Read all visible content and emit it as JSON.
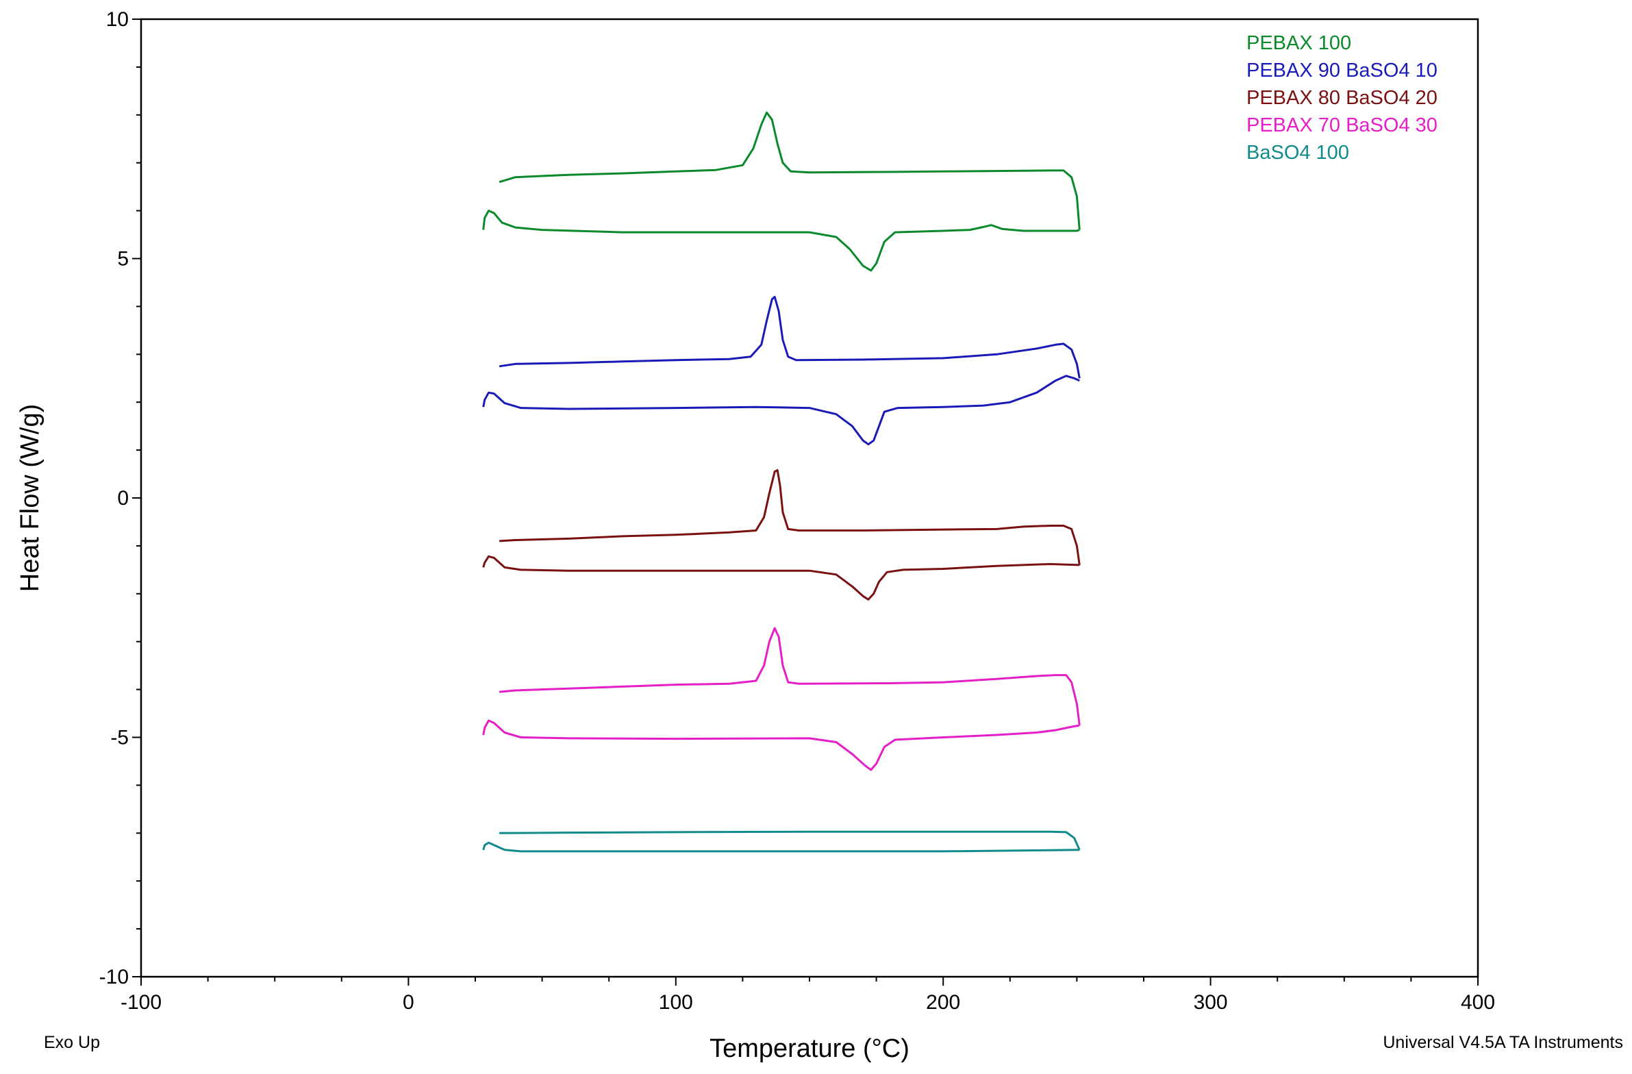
{
  "chart_data": {
    "type": "line",
    "xlabel": "Temperature (°C)",
    "ylabel": "Heat Flow (W/g)",
    "xlim": [
      -100,
      400
    ],
    "ylim": [
      -10,
      10
    ],
    "xticks": [
      -100,
      0,
      100,
      200,
      300,
      400
    ],
    "yticks": [
      -10,
      0,
      5,
      10
    ],
    "xtick_labels": [
      "-100",
      "0",
      "100",
      "200",
      "300",
      "400"
    ],
    "ytick_labels": [
      "-10",
      "0",
      "5",
      "10"
    ],
    "footer_left": "Exo Up",
    "footer_right": "Universal V4.5A TA Instruments",
    "grid": false,
    "legend_position": "top-right",
    "series": [
      {
        "name": "PEBAX 100",
        "color": "#0a8a2a",
        "cooling": [
          [
            34,
            6.6
          ],
          [
            40,
            6.7
          ],
          [
            60,
            6.75
          ],
          [
            80,
            6.78
          ],
          [
            100,
            6.82
          ],
          [
            115,
            6.85
          ],
          [
            125,
            6.95
          ],
          [
            129,
            7.3
          ],
          [
            132,
            7.8
          ],
          [
            134,
            8.05
          ],
          [
            136,
            7.9
          ],
          [
            138,
            7.4
          ],
          [
            140,
            7.0
          ],
          [
            143,
            6.82
          ],
          [
            150,
            6.8
          ],
          [
            180,
            6.81
          ],
          [
            200,
            6.82
          ],
          [
            220,
            6.83
          ],
          [
            240,
            6.84
          ],
          [
            245,
            6.84
          ],
          [
            248,
            6.7
          ],
          [
            250,
            6.3
          ],
          [
            251,
            5.6
          ]
        ],
        "heating": [
          [
            28,
            5.6
          ],
          [
            28.5,
            5.85
          ],
          [
            30,
            6.0
          ],
          [
            32,
            5.95
          ],
          [
            35,
            5.75
          ],
          [
            40,
            5.65
          ],
          [
            50,
            5.6
          ],
          [
            80,
            5.55
          ],
          [
            100,
            5.55
          ],
          [
            150,
            5.55
          ],
          [
            160,
            5.45
          ],
          [
            165,
            5.2
          ],
          [
            170,
            4.85
          ],
          [
            173,
            4.75
          ],
          [
            175,
            4.9
          ],
          [
            178,
            5.35
          ],
          [
            182,
            5.55
          ],
          [
            200,
            5.58
          ],
          [
            210,
            5.6
          ],
          [
            215,
            5.66
          ],
          [
            218,
            5.7
          ],
          [
            222,
            5.62
          ],
          [
            230,
            5.58
          ],
          [
            250,
            5.58
          ],
          [
            251,
            5.6
          ]
        ]
      },
      {
        "name": "PEBAX 90 BaSO4 10",
        "color": "#1a1ab8",
        "cooling": [
          [
            34,
            2.75
          ],
          [
            40,
            2.8
          ],
          [
            60,
            2.82
          ],
          [
            80,
            2.85
          ],
          [
            100,
            2.88
          ],
          [
            120,
            2.9
          ],
          [
            128,
            2.95
          ],
          [
            132,
            3.2
          ],
          [
            134,
            3.7
          ],
          [
            136,
            4.15
          ],
          [
            137,
            4.2
          ],
          [
            138.5,
            3.9
          ],
          [
            140,
            3.3
          ],
          [
            142,
            2.95
          ],
          [
            145,
            2.88
          ],
          [
            170,
            2.89
          ],
          [
            200,
            2.92
          ],
          [
            220,
            3.0
          ],
          [
            235,
            3.12
          ],
          [
            242,
            3.2
          ],
          [
            245,
            3.22
          ],
          [
            248,
            3.1
          ],
          [
            250,
            2.8
          ],
          [
            251,
            2.5
          ]
        ],
        "heating": [
          [
            28,
            1.9
          ],
          [
            28.5,
            2.05
          ],
          [
            30,
            2.2
          ],
          [
            32,
            2.18
          ],
          [
            36,
            1.98
          ],
          [
            42,
            1.88
          ],
          [
            60,
            1.86
          ],
          [
            100,
            1.88
          ],
          [
            130,
            1.9
          ],
          [
            150,
            1.88
          ],
          [
            160,
            1.75
          ],
          [
            166,
            1.5
          ],
          [
            170,
            1.2
          ],
          [
            172,
            1.12
          ],
          [
            174,
            1.2
          ],
          [
            176,
            1.5
          ],
          [
            178,
            1.8
          ],
          [
            183,
            1.88
          ],
          [
            200,
            1.9
          ],
          [
            215,
            1.93
          ],
          [
            225,
            2.0
          ],
          [
            235,
            2.2
          ],
          [
            242,
            2.45
          ],
          [
            246,
            2.55
          ],
          [
            249,
            2.5
          ],
          [
            251,
            2.45
          ]
        ]
      },
      {
        "name": "PEBAX 80 BaSO4 20",
        "color": "#7a1010",
        "cooling": [
          [
            34,
            -0.9
          ],
          [
            40,
            -0.88
          ],
          [
            60,
            -0.85
          ],
          [
            80,
            -0.8
          ],
          [
            100,
            -0.77
          ],
          [
            120,
            -0.72
          ],
          [
            130,
            -0.68
          ],
          [
            133,
            -0.4
          ],
          [
            135,
            0.1
          ],
          [
            137,
            0.55
          ],
          [
            138,
            0.58
          ],
          [
            139,
            0.25
          ],
          [
            140,
            -0.3
          ],
          [
            142,
            -0.65
          ],
          [
            146,
            -0.68
          ],
          [
            170,
            -0.68
          ],
          [
            200,
            -0.66
          ],
          [
            220,
            -0.65
          ],
          [
            230,
            -0.6
          ],
          [
            240,
            -0.58
          ],
          [
            245,
            -0.58
          ],
          [
            248,
            -0.65
          ],
          [
            250,
            -1.0
          ],
          [
            251,
            -1.4
          ]
        ],
        "heating": [
          [
            28,
            -1.45
          ],
          [
            28.5,
            -1.35
          ],
          [
            30,
            -1.22
          ],
          [
            32,
            -1.25
          ],
          [
            36,
            -1.45
          ],
          [
            42,
            -1.5
          ],
          [
            60,
            -1.52
          ],
          [
            100,
            -1.52
          ],
          [
            150,
            -1.52
          ],
          [
            160,
            -1.6
          ],
          [
            166,
            -1.85
          ],
          [
            170,
            -2.05
          ],
          [
            172,
            -2.12
          ],
          [
            174,
            -2.0
          ],
          [
            176,
            -1.75
          ],
          [
            179,
            -1.55
          ],
          [
            185,
            -1.5
          ],
          [
            200,
            -1.48
          ],
          [
            220,
            -1.42
          ],
          [
            240,
            -1.38
          ],
          [
            251,
            -1.4
          ]
        ]
      },
      {
        "name": "PEBAX 70 BaSO4 30",
        "color": "#e61ec8",
        "cooling": [
          [
            34,
            -4.05
          ],
          [
            40,
            -4.02
          ],
          [
            60,
            -3.98
          ],
          [
            80,
            -3.94
          ],
          [
            100,
            -3.9
          ],
          [
            120,
            -3.88
          ],
          [
            130,
            -3.82
          ],
          [
            133,
            -3.5
          ],
          [
            135,
            -3.0
          ],
          [
            137,
            -2.72
          ],
          [
            138.5,
            -2.9
          ],
          [
            140,
            -3.5
          ],
          [
            142,
            -3.85
          ],
          [
            146,
            -3.88
          ],
          [
            180,
            -3.87
          ],
          [
            200,
            -3.85
          ],
          [
            220,
            -3.78
          ],
          [
            235,
            -3.72
          ],
          [
            242,
            -3.7
          ],
          [
            246,
            -3.7
          ],
          [
            248,
            -3.85
          ],
          [
            250,
            -4.3
          ],
          [
            251,
            -4.75
          ]
        ],
        "heating": [
          [
            28,
            -4.95
          ],
          [
            28.5,
            -4.8
          ],
          [
            30,
            -4.65
          ],
          [
            32,
            -4.7
          ],
          [
            36,
            -4.9
          ],
          [
            42,
            -5.0
          ],
          [
            60,
            -5.02
          ],
          [
            100,
            -5.03
          ],
          [
            150,
            -5.02
          ],
          [
            160,
            -5.1
          ],
          [
            166,
            -5.35
          ],
          [
            171,
            -5.6
          ],
          [
            173,
            -5.68
          ],
          [
            175,
            -5.55
          ],
          [
            178,
            -5.2
          ],
          [
            182,
            -5.05
          ],
          [
            200,
            -5.0
          ],
          [
            220,
            -4.95
          ],
          [
            235,
            -4.9
          ],
          [
            242,
            -4.85
          ],
          [
            248,
            -4.78
          ],
          [
            251,
            -4.75
          ]
        ]
      },
      {
        "name": "BaSO4 100",
        "color": "#108a8a",
        "cooling": [
          [
            34,
            -7.0
          ],
          [
            60,
            -6.99
          ],
          [
            100,
            -6.98
          ],
          [
            150,
            -6.97
          ],
          [
            200,
            -6.97
          ],
          [
            240,
            -6.97
          ],
          [
            246,
            -6.98
          ],
          [
            249,
            -7.1
          ],
          [
            251,
            -7.35
          ]
        ],
        "heating": [
          [
            28,
            -7.35
          ],
          [
            28.5,
            -7.25
          ],
          [
            30,
            -7.2
          ],
          [
            32,
            -7.25
          ],
          [
            36,
            -7.35
          ],
          [
            42,
            -7.38
          ],
          [
            100,
            -7.38
          ],
          [
            200,
            -7.38
          ],
          [
            251,
            -7.35
          ]
        ]
      }
    ]
  }
}
